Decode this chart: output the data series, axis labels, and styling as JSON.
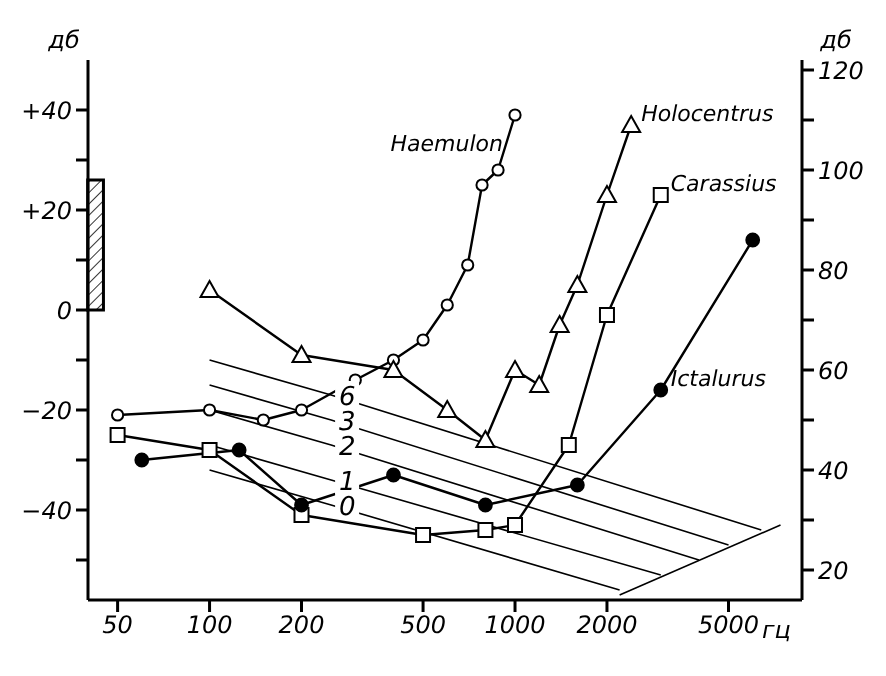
{
  "chart_data": {
    "type": "line",
    "xlabel": "гц",
    "ylabel": "дб",
    "y2label": "дб",
    "log": "x",
    "grid": false,
    "legend": false,
    "line_style": "solid",
    "xlim": [
      40,
      8700
    ],
    "xticks": [
      50,
      100,
      200,
      500,
      1000,
      2000,
      5000
    ],
    "ylim": [
      -58,
      50
    ],
    "yticks": [
      {
        "value": -50,
        "label": null
      },
      {
        "value": -40,
        "label": "−40"
      },
      {
        "value": -30,
        "label": null
      },
      {
        "value": -20,
        "label": "−20"
      },
      {
        "value": -10,
        "label": null
      },
      {
        "value": 0,
        "label": "0"
      },
      {
        "value": 10,
        "label": null
      },
      {
        "value": 20,
        "label": "+20"
      },
      {
        "value": 30,
        "label": null
      },
      {
        "value": 40,
        "label": "+40"
      }
    ],
    "y2lim": [
      14,
      122
    ],
    "y2ticks": [
      20,
      {
        "value": 30,
        "label": null
      },
      40,
      {
        "value": 50,
        "label": null
      },
      60,
      {
        "value": 70,
        "label": null
      },
      80,
      {
        "value": 90,
        "label": null
      },
      100,
      {
        "value": 110,
        "label": null
      },
      120
    ],
    "series": [
      {
        "name": "Haemulon",
        "color": "#000000",
        "marker": "circle",
        "x": [
          50,
          100,
          150,
          200,
          300,
          400,
          500,
          600,
          700,
          780,
          880,
          1000
        ],
        "values": [
          -21,
          -20,
          -22,
          -20,
          -14,
          -10,
          -6,
          1,
          9,
          25,
          28,
          39
        ]
      },
      {
        "name": "Holocentrus",
        "color": "#000000",
        "marker": "triangle",
        "x": [
          100,
          200,
          400,
          600,
          800,
          1000,
          1200,
          1400,
          1600,
          2000,
          2400
        ],
        "values": [
          4,
          -9,
          -12,
          -20,
          -26,
          -12,
          -15,
          -3,
          5,
          23,
          37
        ]
      },
      {
        "name": "Carassius",
        "color": "#000000",
        "marker": "square",
        "x": [
          50,
          100,
          200,
          500,
          800,
          1000,
          1500,
          2000,
          3000
        ],
        "values": [
          -25,
          -28,
          -41,
          -45,
          -44,
          -43,
          -27,
          -1,
          23
        ]
      },
      {
        "name": "Ictalurus",
        "color": "#000000",
        "marker": "circle",
        "x": [
          60,
          125,
          200,
          400,
          800,
          1600,
          3000,
          6000
        ],
        "values": [
          -30,
          -28,
          -39,
          -33,
          -39,
          -35,
          -16,
          14
        ]
      },
      {
        "name": "6",
        "color": "#000000",
        "marker": "none",
        "x": [
          100,
          250,
          6400
        ],
        "values": [
          -10,
          -17,
          -44
        ]
      },
      {
        "name": "3",
        "color": "#000000",
        "marker": "none",
        "x": [
          100,
          250,
          5000
        ],
        "values": [
          -15,
          -22,
          -47
        ]
      },
      {
        "name": "2",
        "color": "#000000",
        "marker": "none",
        "x": [
          100,
          250,
          4000
        ],
        "values": [
          -20,
          -27,
          -50
        ]
      },
      {
        "name": "1",
        "color": "#000000",
        "marker": "none",
        "x": [
          100,
          250,
          3000
        ],
        "values": [
          -27,
          -34,
          -53
        ]
      },
      {
        "name": "0",
        "color": "#000000",
        "marker": "none",
        "x": [
          100,
          250,
          2200
        ],
        "values": [
          -32,
          -39,
          -56
        ]
      },
      {
        "color": "#000000",
        "marker": "none",
        "x": [
          2200,
          7400
        ],
        "values": [
          -57,
          -43
        ]
      },
      {
        "type": "bar",
        "color": "#000000",
        "x": [
          42
        ],
        "values": [
          26
        ]
      }
    ]
  }
}
